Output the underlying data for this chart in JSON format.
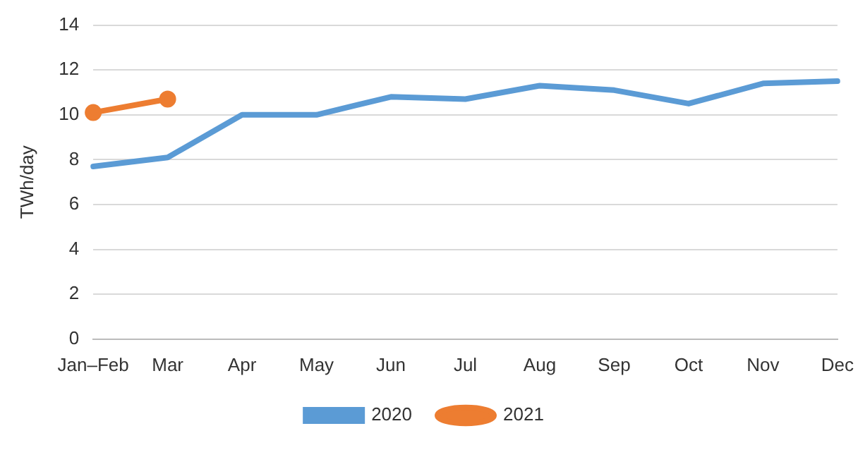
{
  "chart_data": {
    "type": "line",
    "ylabel": "TWh/day",
    "categories": [
      "Jan–Feb",
      "Mar",
      "Apr",
      "May",
      "Jun",
      "Jul",
      "Aug",
      "Sep",
      "Oct",
      "Nov",
      "Dec"
    ],
    "series": [
      {
        "name": "2020",
        "color": "#5b9bd5",
        "marker": "none",
        "values": [
          7.7,
          8.1,
          10.0,
          10.0,
          10.8,
          10.7,
          11.3,
          11.1,
          10.5,
          11.4,
          11.5
        ]
      },
      {
        "name": "2021",
        "color": "#ed7d31",
        "marker": "circle",
        "values": [
          10.1,
          10.7,
          null,
          null,
          null,
          null,
          null,
          null,
          null,
          null,
          null
        ]
      }
    ],
    "ylim": [
      0,
      14
    ],
    "yticks": [
      0,
      2,
      4,
      6,
      8,
      10,
      12,
      14
    ],
    "grid": "y",
    "legend": "bottom"
  }
}
